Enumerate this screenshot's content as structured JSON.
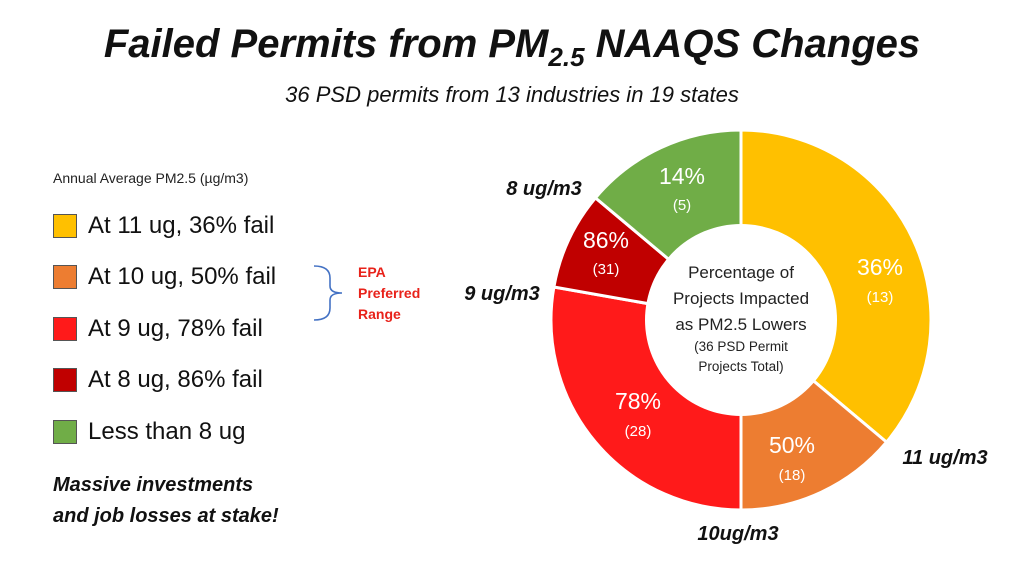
{
  "header": {
    "title_main": "Failed Permits from PM",
    "title_sub": "2.5",
    "title_end": " NAAQS Changes",
    "subtitle": "36 PSD permits from 13 industries in 19 states"
  },
  "legend": {
    "title": "Annual Average PM2.5 (µg/m3)",
    "items": [
      {
        "label": "At 11 ug, 36% fail",
        "color": "#ffc000"
      },
      {
        "label": "At 10 ug, 50% fail",
        "color": "#ed7d31"
      },
      {
        "label": "At 9 ug, 78% fail",
        "color": "#ff1a1a"
      },
      {
        "label": "At 8 ug, 86% fail",
        "color": "#c00000"
      },
      {
        "label": "Less than 8 ug",
        "color": "#70ad47"
      }
    ]
  },
  "range_note": {
    "line1": "EPA",
    "line2": "Preferred",
    "line3": "Range",
    "color": "#e8221a"
  },
  "note": {
    "line1": "Massive investments",
    "line2": "and job losses at stake!"
  },
  "chart_data": {
    "type": "pie",
    "donut": true,
    "center_text": {
      "line1": "Percentage of",
      "line2": "Projects Impacted",
      "line3": "as PM2.5 Lowers",
      "line4": "(36 PSD Permit",
      "line5": "Projects Total)"
    },
    "slices": [
      {
        "level_label": "11 ug/m3",
        "pct_label": "36%",
        "count_label": "(13)",
        "value": 13,
        "color": "#ffc000"
      },
      {
        "level_label": "10ug/m3",
        "pct_label": "50%",
        "count_label": "(18)",
        "value": 5,
        "color": "#ed7d31"
      },
      {
        "level_label": "9 ug/m3",
        "pct_label": "78%",
        "count_label": "(28)",
        "value": 10,
        "color": "#ff1a1a"
      },
      {
        "level_label": "8 ug/m3",
        "pct_label": "86%",
        "count_label": "(31)",
        "value": 3,
        "color": "#c00000"
      },
      {
        "level_label": "",
        "pct_label": "14%",
        "count_label": "(5)",
        "value": 5,
        "color": "#70ad47"
      }
    ]
  }
}
